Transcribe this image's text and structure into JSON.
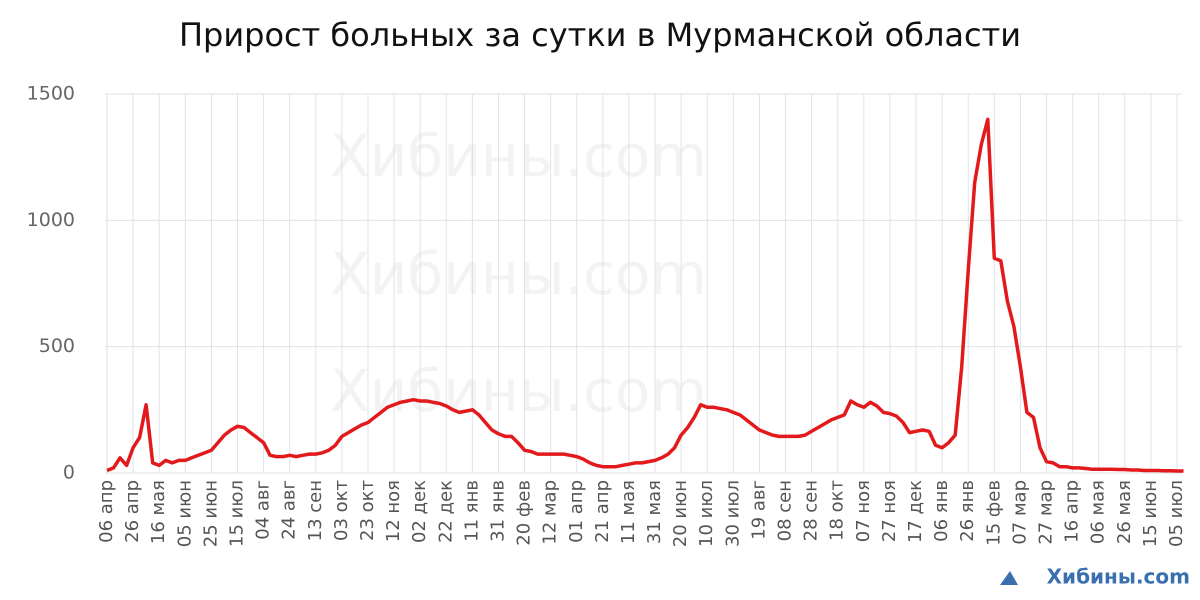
{
  "chart_data": {
    "type": "line",
    "title": "Прирост больных за сутки в Мурманской области",
    "watermark": "Хибины.com",
    "color": "#e31a1c",
    "grid": true,
    "ylim": [
      0,
      1500
    ],
    "yticks": [
      0,
      500,
      1000,
      1500
    ],
    "categories": [
      "06 апр",
      null,
      null,
      null,
      "26 апр",
      null,
      null,
      null,
      "16 мая",
      null,
      null,
      null,
      "05 июн",
      null,
      null,
      null,
      "25 июн",
      null,
      null,
      null,
      "15 июл",
      null,
      null,
      null,
      "04 авг",
      null,
      null,
      null,
      "24 авг",
      null,
      null,
      null,
      "13 сен",
      null,
      null,
      null,
      "03 окт",
      null,
      null,
      null,
      "23 окт",
      null,
      null,
      null,
      "12 ноя",
      null,
      null,
      null,
      "02 дек",
      null,
      null,
      null,
      "22 дек",
      null,
      null,
      null,
      "11 янв",
      null,
      null,
      null,
      "31 янв",
      null,
      null,
      null,
      "20 фев",
      null,
      null,
      null,
      "12 мар",
      null,
      null,
      null,
      "01 апр",
      null,
      null,
      null,
      "21 апр",
      null,
      null,
      null,
      "11 мая",
      null,
      null,
      null,
      "31 мая",
      null,
      null,
      null,
      "20 июн",
      null,
      null,
      null,
      "10 июл",
      null,
      null,
      null,
      "30 июл",
      null,
      null,
      null,
      "19 авг",
      null,
      null,
      null,
      "08 сен",
      null,
      null,
      null,
      "28 сен",
      null,
      null,
      null,
      "18 окт",
      null,
      null,
      null,
      "07 ноя",
      null,
      null,
      null,
      "27 ноя",
      null,
      null,
      null,
      "17 дек",
      null,
      null,
      null,
      "06 янв",
      null,
      null,
      null,
      "26 янв",
      null,
      null,
      null,
      "15 фев",
      null,
      null,
      null,
      "07 мар",
      null,
      null,
      null,
      "27 мар",
      null,
      null,
      null,
      "16 апр",
      null,
      null,
      null,
      "06 мая",
      null,
      null,
      null,
      "26 мая",
      null,
      null,
      null,
      "15 июн",
      null,
      null,
      null,
      "05 июл",
      null
    ],
    "values": [
      10,
      20,
      60,
      30,
      100,
      140,
      270,
      40,
      30,
      50,
      40,
      50,
      50,
      60,
      70,
      80,
      90,
      120,
      150,
      170,
      185,
      180,
      160,
      140,
      120,
      70,
      65,
      65,
      70,
      65,
      70,
      75,
      75,
      80,
      90,
      110,
      145,
      160,
      175,
      190,
      200,
      220,
      240,
      260,
      270,
      280,
      285,
      290,
      285,
      285,
      280,
      275,
      265,
      250,
      240,
      245,
      250,
      230,
      200,
      170,
      155,
      145,
      145,
      120,
      90,
      85,
      75,
      75,
      75,
      75,
      75,
      70,
      65,
      55,
      40,
      30,
      25,
      25,
      25,
      30,
      35,
      40,
      40,
      45,
      50,
      60,
      75,
      100,
      150,
      180,
      220,
      270,
      260,
      260,
      255,
      250,
      240,
      230,
      210,
      190,
      170,
      160,
      150,
      145,
      145,
      145,
      145,
      150,
      165,
      180,
      195,
      210,
      220,
      230,
      285,
      270,
      260,
      280,
      265,
      240,
      235,
      225,
      200,
      160,
      165,
      170,
      165,
      110,
      100,
      120,
      150,
      420,
      800,
      1150,
      1300,
      1400,
      850,
      840,
      680,
      580,
      420,
      240,
      220,
      100,
      45,
      40,
      25,
      25,
      20,
      20,
      18,
      15,
      15,
      15,
      15,
      14,
      14,
      12,
      12,
      10,
      10,
      10,
      9,
      9,
      8,
      8
    ]
  }
}
